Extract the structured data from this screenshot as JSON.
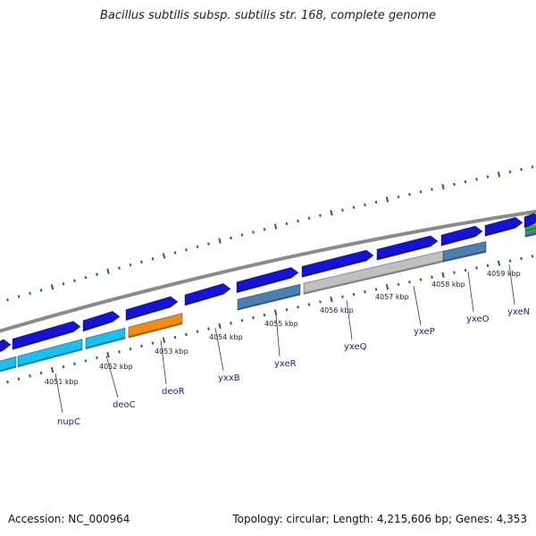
{
  "title": "Bacillus subtilis subsp. subtilis str. 168, complete genome",
  "footer": {
    "accession": "Accession: NC_000964",
    "summary": "Topology: circular; Length: 4,215,606 bp; Genes: 4,353"
  },
  "kbp_labels": [
    "4051 kbp",
    "4052 kbp",
    "4053 kbp",
    "4054 kbp",
    "4055 kbp",
    "4056 kbp",
    "4057 kbp",
    "4058 kbp",
    "4059 kbp"
  ],
  "gene_labels": [
    "nupC",
    "deoC",
    "deoR",
    "yxxB",
    "yxeR",
    "yxeQ",
    "yxeP",
    "yxeO",
    "yxeN"
  ],
  "colors": {
    "cds": "#1414d8",
    "cyan": "#18c0f0",
    "orange": "#f58a10",
    "steel": "#4a7fb0",
    "gray": "#c0c0c0",
    "green": "#20c020",
    "tick": "#207020",
    "backbone": "#8a8a8a"
  }
}
